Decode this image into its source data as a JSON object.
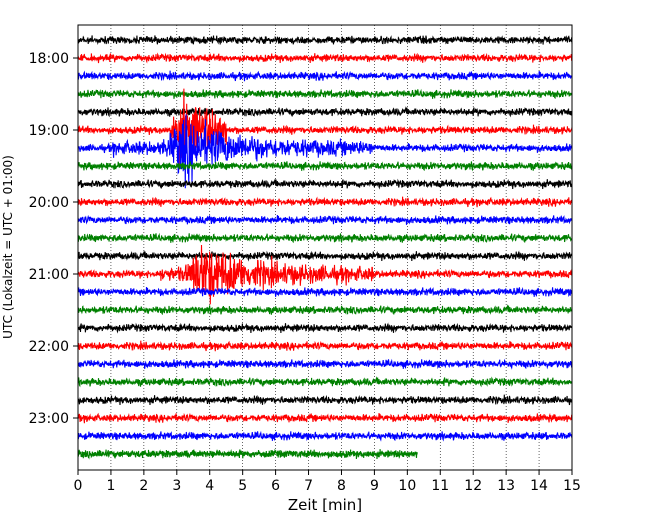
{
  "chart_data": {
    "type": "line",
    "title": "",
    "xlabel": "Zeit  [min]",
    "ylabel": "UTC (Lokalzeit = UTC + 01:00)",
    "xlim": [
      0,
      15
    ],
    "x_ticks": [
      "0",
      "1",
      "2",
      "3",
      "4",
      "5",
      "6",
      "7",
      "8",
      "9",
      "10",
      "11",
      "12",
      "13",
      "14",
      "15"
    ],
    "y_ticks": [
      "18:00",
      "19:00",
      "20:00",
      "21:00",
      "22:00",
      "23:00"
    ],
    "y_tick_hours": [
      18,
      19,
      20,
      21,
      22,
      23
    ],
    "trace_interval_minutes": 15,
    "start_time": "17:45",
    "trace_colors": [
      "#000000",
      "#ff0000",
      "#0000ff",
      "#008000"
    ],
    "grid": "vertical dotted",
    "traces": [
      {
        "start": "17:45",
        "end_minute": 15
      },
      {
        "start": "18:00",
        "end_minute": 15
      },
      {
        "start": "18:15",
        "end_minute": 15
      },
      {
        "start": "18:30",
        "end_minute": 15
      },
      {
        "start": "18:45",
        "end_minute": 15
      },
      {
        "start": "19:00",
        "end_minute": 15
      },
      {
        "start": "19:15",
        "end_minute": 15
      },
      {
        "start": "19:30",
        "end_minute": 15
      },
      {
        "start": "19:45",
        "end_minute": 15
      },
      {
        "start": "20:00",
        "end_minute": 15
      },
      {
        "start": "20:15",
        "end_minute": 15
      },
      {
        "start": "20:30",
        "end_minute": 15
      },
      {
        "start": "20:45",
        "end_minute": 15
      },
      {
        "start": "21:00",
        "end_minute": 15
      },
      {
        "start": "21:15",
        "end_minute": 15
      },
      {
        "start": "21:30",
        "end_minute": 15
      },
      {
        "start": "21:45",
        "end_minute": 15
      },
      {
        "start": "22:00",
        "end_minute": 15
      },
      {
        "start": "22:15",
        "end_minute": 15
      },
      {
        "start": "22:30",
        "end_minute": 15
      },
      {
        "start": "22:45",
        "end_minute": 15
      },
      {
        "start": "23:00",
        "end_minute": 15
      },
      {
        "start": "23:15",
        "end_minute": 15
      },
      {
        "start": "23:30",
        "end_minute": 10.3
      }
    ],
    "events": [
      {
        "trace": "19:15",
        "from_minute": 1.0,
        "to_minute": 9.0,
        "peak_minute": 3.2
      },
      {
        "trace": "19:00",
        "from_minute": 2.8,
        "to_minute": 4.5,
        "peak_minute": 3.2
      },
      {
        "trace": "21:00",
        "from_minute": 2.5,
        "to_minute": 9.0,
        "peak_minute": 3.8
      }
    ]
  }
}
